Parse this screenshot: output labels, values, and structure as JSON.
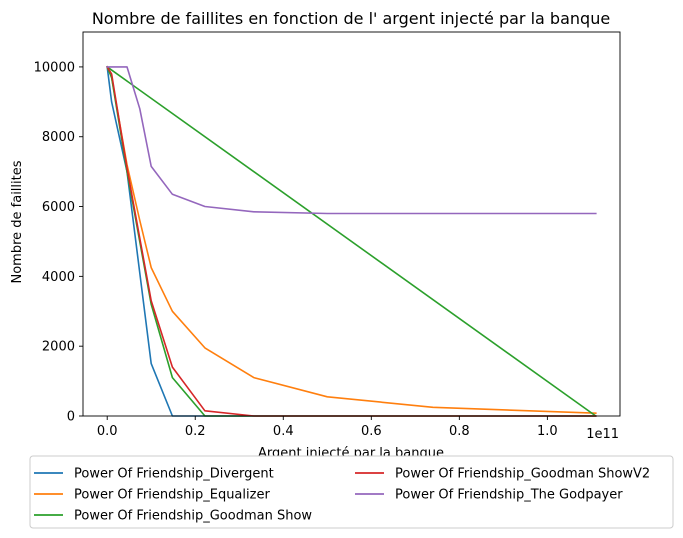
{
  "chart_data": {
    "type": "line",
    "title": "Nombre de faillites en fonction de l' argent injecté par la banque",
    "xlabel": "Argent injecté par la banque",
    "ylabel": "Nombre de faillites",
    "x_offset_text": "1e11",
    "xlim": [
      -0.055,
      1.165
    ],
    "ylim": [
      0,
      11000
    ],
    "x_ticks": [
      0.0,
      0.2,
      0.4,
      0.6,
      0.8,
      1.0
    ],
    "x_tick_labels": [
      "0.0",
      "0.2",
      "0.4",
      "0.6",
      "0.8",
      "1.0"
    ],
    "y_ticks": [
      0,
      2000,
      4000,
      6000,
      8000,
      10000
    ],
    "y_tick_labels": [
      "0",
      "2000",
      "4000",
      "6000",
      "8000",
      "10000"
    ],
    "grid": false,
    "legend_position": "below-center",
    "series": [
      {
        "name": "Power Of Friendship_Divergent",
        "color": "#1f77b4",
        "x": [
          0.0,
          0.01,
          0.045,
          0.1,
          0.148,
          0.22,
          1.11
        ],
        "y": [
          10000,
          9000,
          7000,
          1500,
          0,
          0,
          0
        ]
      },
      {
        "name": "Power Of Friendship_Equalizer",
        "color": "#ff7f0e",
        "x": [
          0.0,
          0.01,
          0.045,
          0.074,
          0.1,
          0.148,
          0.222,
          0.333,
          0.5,
          0.74,
          1.11
        ],
        "y": [
          10000,
          9700,
          7200,
          5600,
          4250,
          3000,
          1950,
          1100,
          550,
          250,
          80
        ]
      },
      {
        "name": "Power Of Friendship_Goodman Show",
        "color": "#2ca02c",
        "x": [
          0.0,
          0.01,
          0.045,
          0.1,
          0.148,
          0.222,
          1.11,
          0.0
        ],
        "y": [
          10000,
          9700,
          7000,
          3200,
          1100,
          0,
          0,
          10000
        ]
      },
      {
        "name": "Power Of Friendship_Goodman ShowV2",
        "color": "#d62728",
        "x": [
          0.0,
          0.01,
          0.045,
          0.1,
          0.148,
          0.222,
          0.333,
          1.11
        ],
        "y": [
          10000,
          9800,
          7100,
          3300,
          1400,
          150,
          0,
          0
        ]
      },
      {
        "name": "Power Of Friendship_The Godpayer",
        "color": "#9467bd",
        "x": [
          0.0,
          0.045,
          0.074,
          0.1,
          0.148,
          0.222,
          0.333,
          0.5,
          0.74,
          1.11
        ],
        "y": [
          10000,
          10000,
          8800,
          7150,
          6350,
          6000,
          5850,
          5800,
          5800,
          5800
        ]
      }
    ]
  }
}
